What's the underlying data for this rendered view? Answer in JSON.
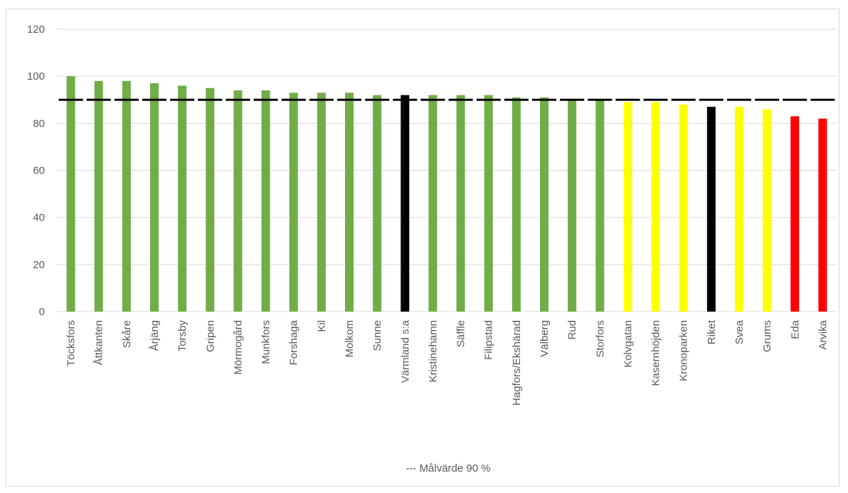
{
  "chart_data": {
    "type": "bar",
    "categories": [
      "Töcksfors",
      "Åttkanten",
      "Skåre",
      "Årjäng",
      "Torsby",
      "Gripen",
      "Mörmogård",
      "Munkfors",
      "Forshaga",
      "Kil",
      "Molkom",
      "Sunne",
      "Värmland s:a",
      "Kristinehamn",
      "Säffle",
      "Filipstad",
      "Hagfors/Ekshärad",
      "Välberg",
      "Rud",
      "Storfors",
      "Kolvgatan",
      "Kasernhöjden",
      "Kronoparken",
      "Riket",
      "Svea",
      "Grums",
      "Eda",
      "Arvika"
    ],
    "values": [
      100,
      98,
      98,
      97,
      96,
      95,
      94,
      94,
      93,
      93,
      93,
      92,
      92,
      92,
      92,
      92,
      91,
      91,
      90,
      90,
      89,
      89,
      88,
      87,
      87,
      86,
      83,
      82
    ],
    "colors": [
      "#70ad47",
      "#70ad47",
      "#70ad47",
      "#70ad47",
      "#70ad47",
      "#70ad47",
      "#70ad47",
      "#70ad47",
      "#70ad47",
      "#70ad47",
      "#70ad47",
      "#70ad47",
      "#000000",
      "#70ad47",
      "#70ad47",
      "#70ad47",
      "#70ad47",
      "#70ad47",
      "#70ad47",
      "#70ad47",
      "#ffff00",
      "#ffff00",
      "#ffff00",
      "#000000",
      "#ffff00",
      "#ffff00",
      "#ff0000",
      "#ff0000"
    ],
    "target_value": 90,
    "target_color": "#000000",
    "ylim": [
      0,
      120
    ],
    "yticks": [
      "0",
      "20",
      "40",
      "60",
      "80",
      "100",
      "120"
    ],
    "grid": true,
    "note": "--- Målvärde 90 %"
  }
}
